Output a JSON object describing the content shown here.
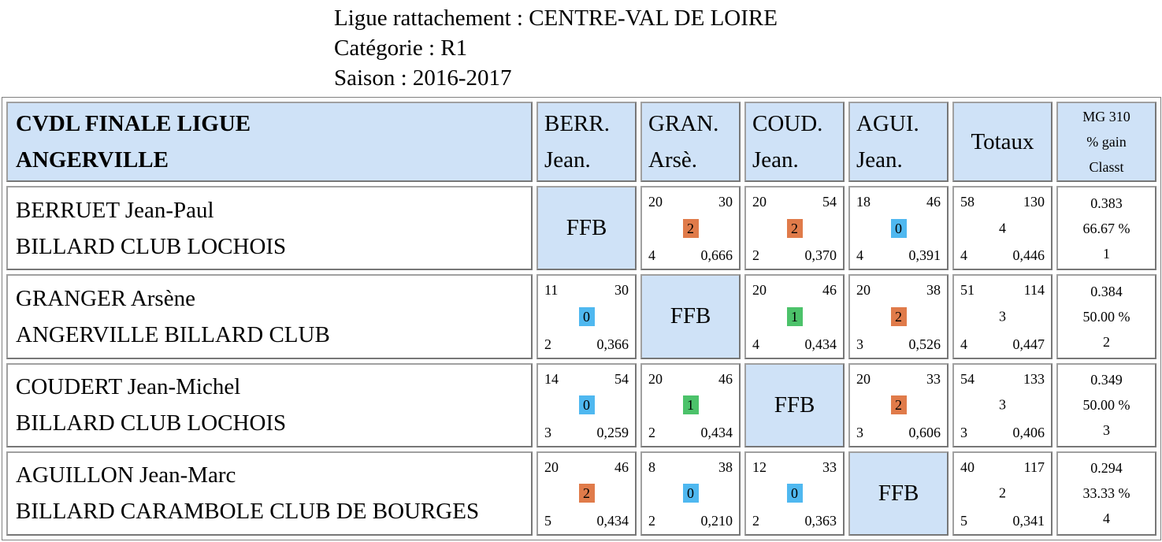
{
  "header": {
    "ligue": "Ligue rattachement : CENTRE-VAL DE LOIRE",
    "categorie": "Catégorie : R1",
    "saison": "Saison : 2016-2017"
  },
  "table": {
    "title_line1": "CVDL FINALE LIGUE",
    "title_line2": "ANGERVILLE",
    "columns": [
      {
        "l1": "BERR.",
        "l2": "Jean."
      },
      {
        "l1": "GRAN.",
        "l2": "Arsè."
      },
      {
        "l1": "COUD.",
        "l2": "Jean."
      },
      {
        "l1": "AGUI.",
        "l2": "Jean."
      }
    ],
    "totals_label": "Totaux",
    "mg_l1": "MG 310",
    "mg_l2": "% gain",
    "mg_l3": "Classt",
    "ffb_label": "FFB",
    "colors": {
      "win": "#e07b4a",
      "draw": "#4cc26a",
      "loss": "#4fb8f0",
      "header_bg": "#cfe2f7"
    },
    "rows": [
      {
        "name": "BERRUET Jean-Paul",
        "club": "BILLARD CLUB LOCHOIS",
        "cells": [
          null,
          {
            "tl": "20",
            "tr": "30",
            "pts": "2",
            "bl": "4",
            "br": "0,666"
          },
          {
            "tl": "20",
            "tr": "54",
            "pts": "2",
            "bl": "2",
            "br": "0,370"
          },
          {
            "tl": "18",
            "tr": "46",
            "pts": "0",
            "bl": "4",
            "br": "0,391"
          }
        ],
        "tot": {
          "tl": "58",
          "tr": "130",
          "mid": "4",
          "bl": "4",
          "br": "0,446"
        },
        "mg": {
          "avg": "0.383",
          "pct": "66.67 %",
          "rank": "1"
        }
      },
      {
        "name": "GRANGER Arsène",
        "club": "ANGERVILLE BILLARD CLUB",
        "cells": [
          {
            "tl": "11",
            "tr": "30",
            "pts": "0",
            "bl": "2",
            "br": "0,366"
          },
          null,
          {
            "tl": "20",
            "tr": "46",
            "pts": "1",
            "bl": "4",
            "br": "0,434"
          },
          {
            "tl": "20",
            "tr": "38",
            "pts": "2",
            "bl": "3",
            "br": "0,526"
          }
        ],
        "tot": {
          "tl": "51",
          "tr": "114",
          "mid": "3",
          "bl": "4",
          "br": "0,447"
        },
        "mg": {
          "avg": "0.384",
          "pct": "50.00 %",
          "rank": "2"
        }
      },
      {
        "name": "COUDERT Jean-Michel",
        "club": "BILLARD CLUB LOCHOIS",
        "cells": [
          {
            "tl": "14",
            "tr": "54",
            "pts": "0",
            "bl": "3",
            "br": "0,259"
          },
          {
            "tl": "20",
            "tr": "46",
            "pts": "1",
            "bl": "2",
            "br": "0,434"
          },
          null,
          {
            "tl": "20",
            "tr": "33",
            "pts": "2",
            "bl": "3",
            "br": "0,606"
          }
        ],
        "tot": {
          "tl": "54",
          "tr": "133",
          "mid": "3",
          "bl": "3",
          "br": "0,406"
        },
        "mg": {
          "avg": "0.349",
          "pct": "50.00 %",
          "rank": "3"
        }
      },
      {
        "name": "AGUILLON Jean-Marc",
        "club": "BILLARD CARAMBOLE CLUB DE BOURGES",
        "cells": [
          {
            "tl": "20",
            "tr": "46",
            "pts": "2",
            "bl": "5",
            "br": "0,434"
          },
          {
            "tl": "8",
            "tr": "38",
            "pts": "0",
            "bl": "2",
            "br": "0,210"
          },
          {
            "tl": "12",
            "tr": "33",
            "pts": "0",
            "bl": "2",
            "br": "0,363"
          },
          null
        ],
        "tot": {
          "tl": "40",
          "tr": "117",
          "mid": "2",
          "bl": "5",
          "br": "0,341"
        },
        "mg": {
          "avg": "0.294",
          "pct": "33.33 %",
          "rank": "4"
        }
      }
    ]
  }
}
